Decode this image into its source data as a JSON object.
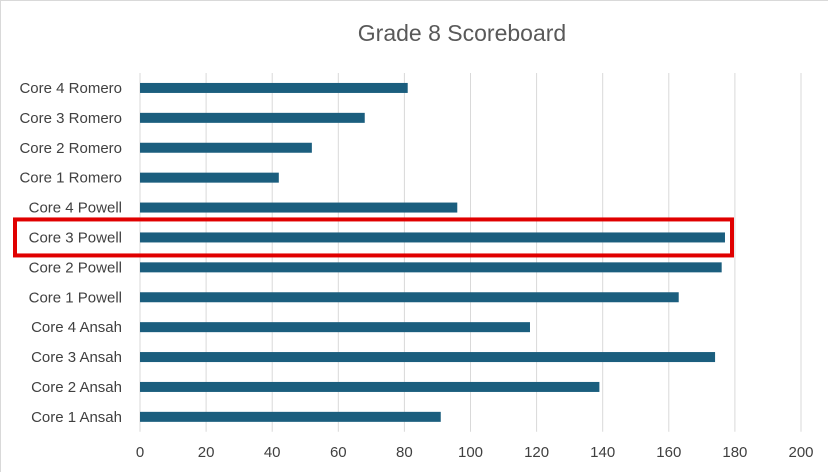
{
  "chart_data": {
    "type": "bar",
    "orientation": "horizontal",
    "title": "Grade 8 Scoreboard",
    "categories": [
      "Core 4 Romero",
      "Core 3 Romero",
      "Core 2 Romero",
      "Core 1 Romero",
      "Core 4 Powell",
      "Core 3 Powell",
      "Core 2 Powell",
      "Core 1 Powell",
      "Core 4 Ansah",
      "Core 3 Ansah",
      "Core 2 Ansah",
      "Core 1 Ansah"
    ],
    "values": [
      81,
      68,
      52,
      42,
      96,
      177,
      176,
      163,
      118,
      174,
      139,
      91
    ],
    "xlim": [
      0,
      200
    ],
    "xticks": [
      0,
      20,
      40,
      60,
      80,
      100,
      120,
      140,
      160,
      180,
      200
    ],
    "grid": "vertical",
    "highlighted_category": "Core 3 Powell",
    "colors": {
      "bar": "#1b5e7e",
      "grid": "#d9d9d9",
      "highlight": "#e00000",
      "title": "#595959",
      "labels": "#404040"
    }
  }
}
